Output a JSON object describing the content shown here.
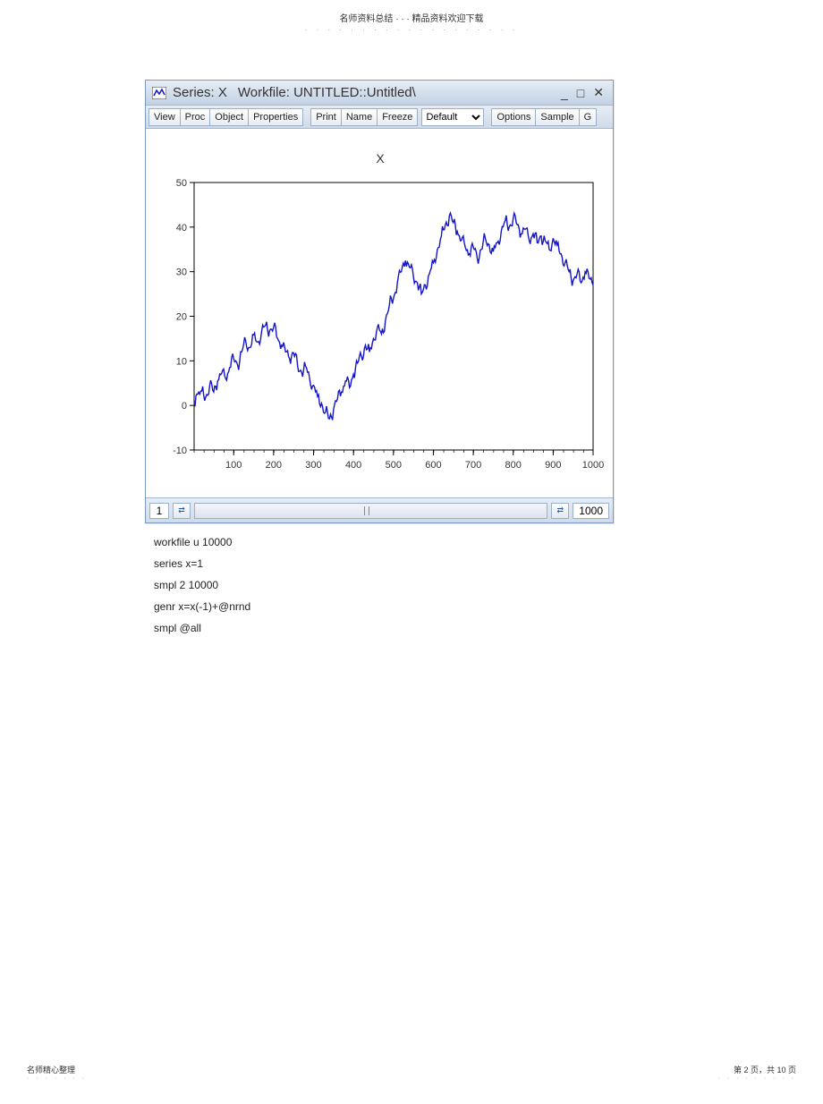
{
  "page_header": {
    "text": "名师资料总结 ·  ·  · 精品资料欢迎下载",
    "dots": "· · · · · · · · · · · · · · · · · · ·"
  },
  "window": {
    "title_prefix": "Series: X",
    "title_suffix": "Workfile: UNTITLED::Untitled\\",
    "toolbar": {
      "view": "View",
      "proc": "Proc",
      "object": "Object",
      "properties": "Properties",
      "print": "Print",
      "name": "Name",
      "freeze": "Freeze",
      "dropdown_value": "Default",
      "options": "Options",
      "sample": "Sample",
      "genr": "G"
    },
    "bottom": {
      "start": "1",
      "end": "1000"
    }
  },
  "chart": {
    "type": "line",
    "title": "X",
    "title_fontsize": 14,
    "line_color": "#1515c8",
    "line_width": 1.4,
    "background_color": "#ffffff",
    "border_color": "#000000",
    "xlim": [
      1,
      1000
    ],
    "ylim": [
      -10,
      50
    ],
    "xtick_step": 100,
    "ytick_step": 10,
    "xtick_labels": [
      "100",
      "200",
      "300",
      "400",
      "500",
      "600",
      "700",
      "800",
      "900",
      "1000"
    ],
    "ytick_labels": [
      "-10",
      "0",
      "10",
      "20",
      "30",
      "40",
      "50"
    ],
    "tick_label_fontsize": 11,
    "series": [
      {
        "x": 1,
        "y": 1
      },
      {
        "x": 10,
        "y": 2.5
      },
      {
        "x": 20,
        "y": 3.2
      },
      {
        "x": 30,
        "y": 1.8
      },
      {
        "x": 40,
        "y": 4.5
      },
      {
        "x": 50,
        "y": 3.0
      },
      {
        "x": 60,
        "y": 5.5
      },
      {
        "x": 70,
        "y": 7.2
      },
      {
        "x": 80,
        "y": 6.0
      },
      {
        "x": 90,
        "y": 8.5
      },
      {
        "x": 100,
        "y": 10.5
      },
      {
        "x": 110,
        "y": 9.0
      },
      {
        "x": 120,
        "y": 12.0
      },
      {
        "x": 130,
        "y": 14.5
      },
      {
        "x": 140,
        "y": 13.0
      },
      {
        "x": 150,
        "y": 15.8
      },
      {
        "x": 160,
        "y": 14.2
      },
      {
        "x": 170,
        "y": 16.5
      },
      {
        "x": 180,
        "y": 18.0
      },
      {
        "x": 190,
        "y": 16.8
      },
      {
        "x": 200,
        "y": 17.5
      },
      {
        "x": 210,
        "y": 15.0
      },
      {
        "x": 220,
        "y": 13.5
      },
      {
        "x": 230,
        "y": 12.0
      },
      {
        "x": 240,
        "y": 10.5
      },
      {
        "x": 250,
        "y": 11.8
      },
      {
        "x": 260,
        "y": 9.0
      },
      {
        "x": 270,
        "y": 7.5
      },
      {
        "x": 280,
        "y": 8.8
      },
      {
        "x": 290,
        "y": 6.2
      },
      {
        "x": 300,
        "y": 4.5
      },
      {
        "x": 310,
        "y": 2.0
      },
      {
        "x": 320,
        "y": 0.5
      },
      {
        "x": 330,
        "y": -1.5
      },
      {
        "x": 340,
        "y": -3.0
      },
      {
        "x": 350,
        "y": -1.0
      },
      {
        "x": 360,
        "y": 1.5
      },
      {
        "x": 370,
        "y": 3.0
      },
      {
        "x": 380,
        "y": 5.5
      },
      {
        "x": 390,
        "y": 4.0
      },
      {
        "x": 400,
        "y": 7.0
      },
      {
        "x": 410,
        "y": 9.5
      },
      {
        "x": 420,
        "y": 11.0
      },
      {
        "x": 430,
        "y": 13.5
      },
      {
        "x": 440,
        "y": 12.0
      },
      {
        "x": 450,
        "y": 15.0
      },
      {
        "x": 460,
        "y": 17.5
      },
      {
        "x": 470,
        "y": 16.0
      },
      {
        "x": 480,
        "y": 19.0
      },
      {
        "x": 490,
        "y": 22.5
      },
      {
        "x": 500,
        "y": 24.0
      },
      {
        "x": 510,
        "y": 27.5
      },
      {
        "x": 520,
        "y": 30.0
      },
      {
        "x": 530,
        "y": 32.5
      },
      {
        "x": 540,
        "y": 31.0
      },
      {
        "x": 550,
        "y": 29.0
      },
      {
        "x": 560,
        "y": 27.5
      },
      {
        "x": 570,
        "y": 25.0
      },
      {
        "x": 580,
        "y": 27.0
      },
      {
        "x": 590,
        "y": 29.5
      },
      {
        "x": 600,
        "y": 32.0
      },
      {
        "x": 610,
        "y": 35.0
      },
      {
        "x": 620,
        "y": 38.0
      },
      {
        "x": 630,
        "y": 40.5
      },
      {
        "x": 640,
        "y": 42.5
      },
      {
        "x": 650,
        "y": 41.0
      },
      {
        "x": 660,
        "y": 39.0
      },
      {
        "x": 670,
        "y": 37.0
      },
      {
        "x": 680,
        "y": 35.5
      },
      {
        "x": 690,
        "y": 34.0
      },
      {
        "x": 700,
        "y": 35.5
      },
      {
        "x": 710,
        "y": 33.0
      },
      {
        "x": 720,
        "y": 35.0
      },
      {
        "x": 730,
        "y": 37.5
      },
      {
        "x": 740,
        "y": 36.0
      },
      {
        "x": 750,
        "y": 34.5
      },
      {
        "x": 760,
        "y": 36.5
      },
      {
        "x": 770,
        "y": 39.0
      },
      {
        "x": 780,
        "y": 41.5
      },
      {
        "x": 790,
        "y": 40.0
      },
      {
        "x": 800,
        "y": 42.0
      },
      {
        "x": 810,
        "y": 40.5
      },
      {
        "x": 820,
        "y": 38.5
      },
      {
        "x": 830,
        "y": 39.5
      },
      {
        "x": 840,
        "y": 37.0
      },
      {
        "x": 850,
        "y": 38.5
      },
      {
        "x": 860,
        "y": 36.5
      },
      {
        "x": 870,
        "y": 38.0
      },
      {
        "x": 880,
        "y": 37.0
      },
      {
        "x": 890,
        "y": 35.0
      },
      {
        "x": 900,
        "y": 37.5
      },
      {
        "x": 910,
        "y": 36.0
      },
      {
        "x": 920,
        "y": 34.0
      },
      {
        "x": 930,
        "y": 32.0
      },
      {
        "x": 940,
        "y": 30.0
      },
      {
        "x": 950,
        "y": 28.0
      },
      {
        "x": 960,
        "y": 29.5
      },
      {
        "x": 970,
        "y": 27.5
      },
      {
        "x": 980,
        "y": 30.0
      },
      {
        "x": 990,
        "y": 28.5
      },
      {
        "x": 1000,
        "y": 27.0
      }
    ]
  },
  "code": {
    "lines": [
      "workfile u 10000",
      "series x=1",
      "smpl 2 10000",
      "genr x=x(-1)+@nrnd",
      "smpl @all"
    ]
  },
  "footer": {
    "left": "名师精心整理",
    "left_dots": "· · · · · · ·",
    "right": "第 2 页，共 10 页",
    "right_dots": "· · · · · · · · ·"
  }
}
